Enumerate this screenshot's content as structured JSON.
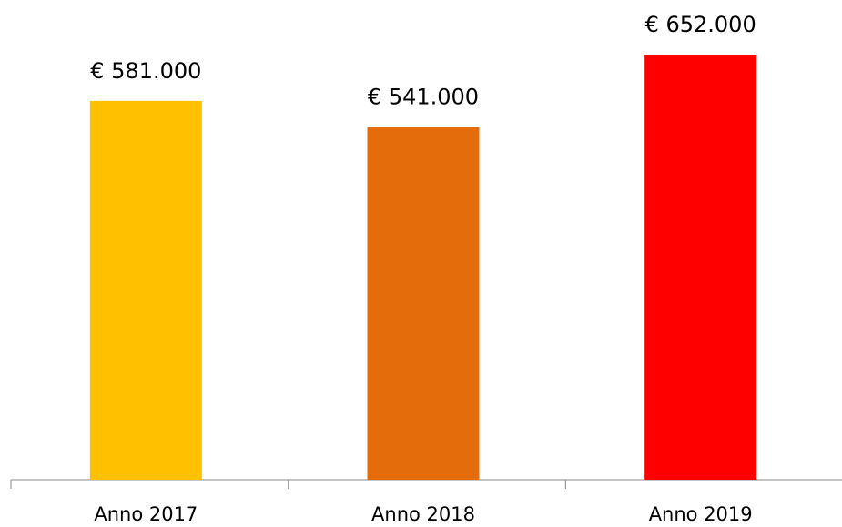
{
  "chart_data": {
    "type": "bar",
    "categories": [
      "Anno 2017",
      "Anno 2018",
      "Anno 2019"
    ],
    "values": [
      581000,
      541000,
      652000
    ],
    "value_labels": [
      "€ 581.000",
      "€ 541.000",
      "€ 652.000"
    ],
    "colors": [
      "#FFC000",
      "#E46C0A",
      "#FF0000"
    ]
  }
}
